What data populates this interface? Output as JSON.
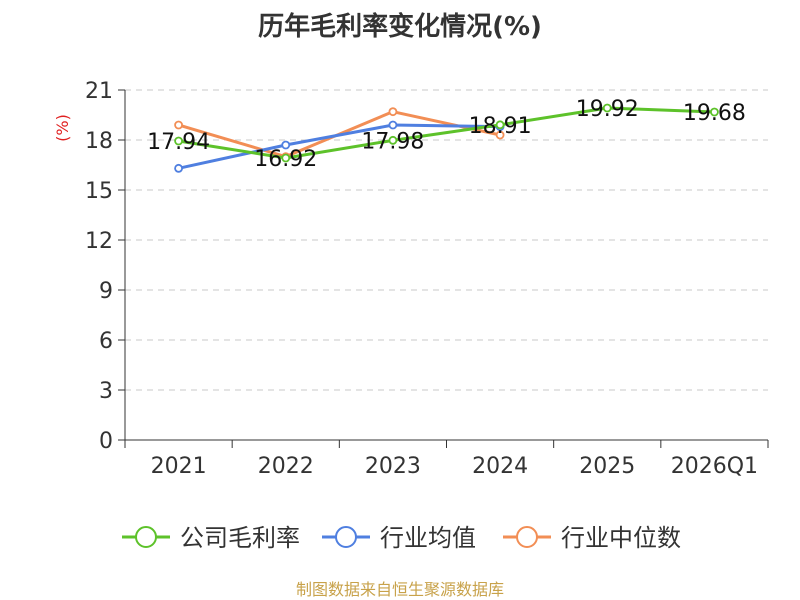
{
  "chart_data": {
    "type": "line",
    "title": "历年毛利率变化情况(%)",
    "ylabel": "(%)",
    "xlabel": "",
    "categories": [
      "2021",
      "2022",
      "2023",
      "2024",
      "2025",
      "2026Q1"
    ],
    "ylim": [
      0,
      21
    ],
    "yticks": [
      0,
      3,
      6,
      9,
      12,
      15,
      18,
      21
    ],
    "grid": true,
    "legend_position": "bottom",
    "series": [
      {
        "name": "公司毛利率",
        "color": "#5dc22a",
        "values": [
          17.94,
          16.92,
          17.98,
          18.91,
          19.92,
          19.68
        ],
        "show_labels": true
      },
      {
        "name": "行业均值",
        "color": "#4f7fe0",
        "values": [
          16.3,
          17.7,
          18.9,
          18.8,
          null,
          null
        ],
        "show_labels": false
      },
      {
        "name": "行业中位数",
        "color": "#f28e55",
        "values": [
          18.9,
          17.0,
          19.7,
          18.3,
          null,
          null
        ],
        "show_labels": false
      }
    ]
  },
  "source": "制图数据来自恒生聚源数据库"
}
